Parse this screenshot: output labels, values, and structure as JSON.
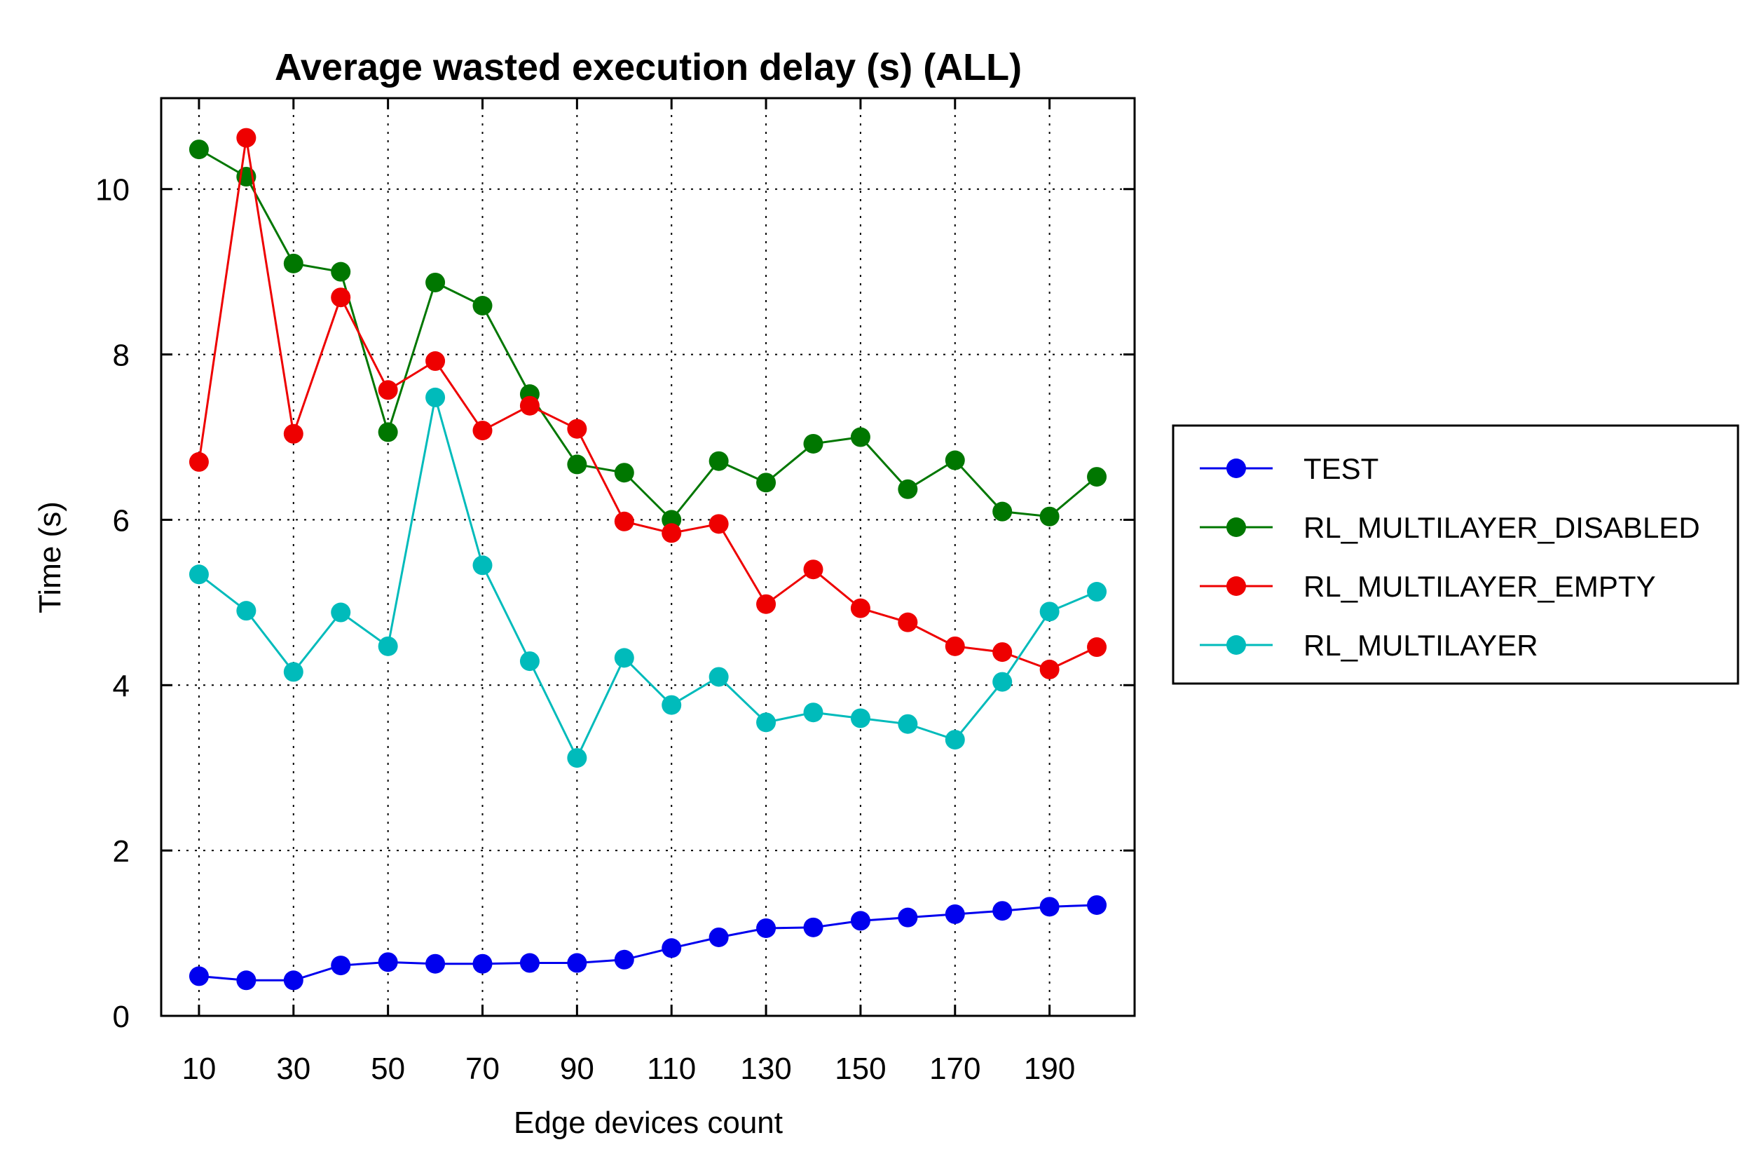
{
  "chart_data": {
    "type": "line",
    "title": "Average wasted execution delay (s) (ALL)",
    "xlabel": "Edge devices count",
    "ylabel": "Time (s)",
    "xlim": [
      2,
      208
    ],
    "ylim": [
      0,
      11.1
    ],
    "xticks": [
      10,
      30,
      50,
      70,
      90,
      110,
      130,
      150,
      170,
      190
    ],
    "yticks": [
      0,
      2,
      4,
      6,
      8,
      10
    ],
    "grid": true,
    "legend_position": "right",
    "x": [
      10,
      20,
      30,
      40,
      50,
      60,
      70,
      80,
      90,
      100,
      110,
      120,
      130,
      140,
      150,
      160,
      170,
      180,
      190,
      200
    ],
    "series": [
      {
        "name": "TEST",
        "color": "#0000ee",
        "values": [
          0.48,
          0.43,
          0.43,
          0.61,
          0.65,
          0.63,
          0.63,
          0.64,
          0.64,
          0.68,
          0.82,
          0.95,
          1.06,
          1.07,
          1.15,
          1.19,
          1.23,
          1.27,
          1.32,
          1.34
        ]
      },
      {
        "name": "RL_MULTILAYER_DISABLED",
        "color": "#007700",
        "values": [
          10.48,
          10.15,
          9.1,
          9.0,
          7.06,
          8.87,
          8.59,
          7.52,
          6.67,
          6.57,
          6.0,
          6.71,
          6.45,
          6.92,
          7.0,
          6.37,
          6.72,
          6.1,
          6.04,
          6.52
        ]
      },
      {
        "name": "RL_MULTILAYER_EMPTY",
        "color": "#ee0000",
        "values": [
          6.7,
          10.62,
          7.04,
          8.69,
          7.57,
          7.92,
          7.08,
          7.38,
          7.1,
          5.98,
          5.84,
          5.95,
          4.98,
          5.4,
          4.93,
          4.76,
          4.47,
          4.4,
          4.19,
          4.46
        ]
      },
      {
        "name": "RL_MULTILAYER",
        "color": "#00bbbb",
        "values": [
          5.34,
          4.9,
          4.16,
          4.88,
          4.47,
          7.48,
          5.45,
          4.29,
          3.12,
          4.33,
          3.76,
          4.1,
          3.55,
          3.67,
          3.6,
          3.53,
          3.34,
          4.04,
          4.89,
          5.13
        ]
      }
    ]
  }
}
